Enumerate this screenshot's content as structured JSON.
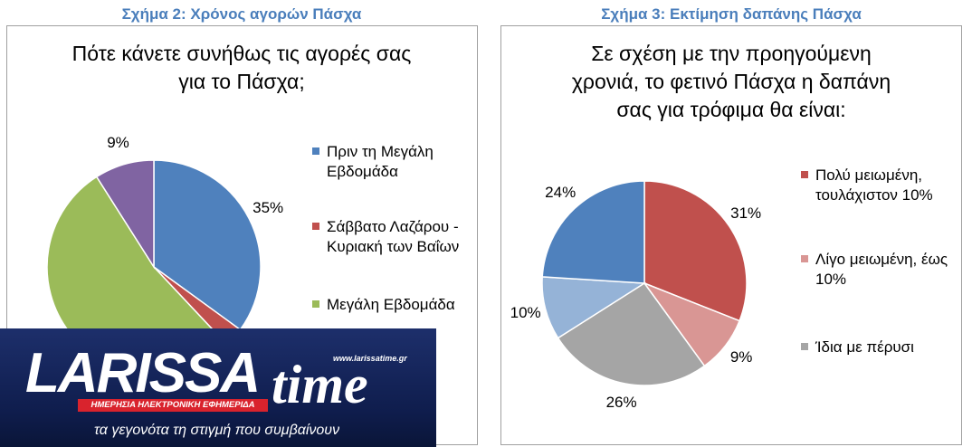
{
  "chart_data": [
    {
      "type": "pie",
      "header": "Σχήμα 2: Χρόνος αγορών Πάσχα",
      "title": [
        "Πότε κάνετε συνήθως τις αγορές σας",
        "για το Πάσχα;"
      ],
      "categories": [
        "Πριν τη Μεγάλη Εβδομάδα",
        "Σάββατο Λαζάρου - Κυριακή των Βαΐων",
        "Μεγάλη Εβδομάδα",
        null
      ],
      "values": [
        35,
        3,
        53,
        9
      ],
      "value_labels": [
        "35%",
        null,
        null,
        "9%"
      ],
      "colors": [
        "#4f81bd",
        "#c0504d",
        "#9bbb59",
        "#8064a2"
      ]
    },
    {
      "type": "pie",
      "header": "Σχήμα 3: Εκτίμηση δαπάνης Πάσχα",
      "title": [
        "Σε σχέση με την προηγούμενη",
        "χρονιά, το φετινό Πάσχα η δαπάνη",
        "σας για τρόφιμα θα είναι:"
      ],
      "categories": [
        "Πολύ μειωμένη, τουλάχιστον 10%",
        "Λίγο μειωμένη, έως 10%",
        "Ίδια με πέρυσι",
        null,
        null
      ],
      "values": [
        31,
        9,
        26,
        10,
        24
      ],
      "value_labels": [
        "31%",
        "9%",
        "26%",
        "10%",
        "24%"
      ],
      "colors": [
        "#c0504d",
        "#d99694",
        "#a5a5a5",
        "#95b3d7",
        "#4f81bd"
      ]
    }
  ],
  "logo": {
    "name_part1": "LARISSA",
    "name_part2": "time",
    "url": "www.larissatime.gr",
    "tagline": "ΗΜΕΡΗΣΙΑ ΗΛΕΚΤΡΟΝΙΚΗ ΕΦΗΜΕΡΙΔΑ",
    "slogan": "τα γεγονότα τη στιγμή που συμβαίνουν"
  }
}
